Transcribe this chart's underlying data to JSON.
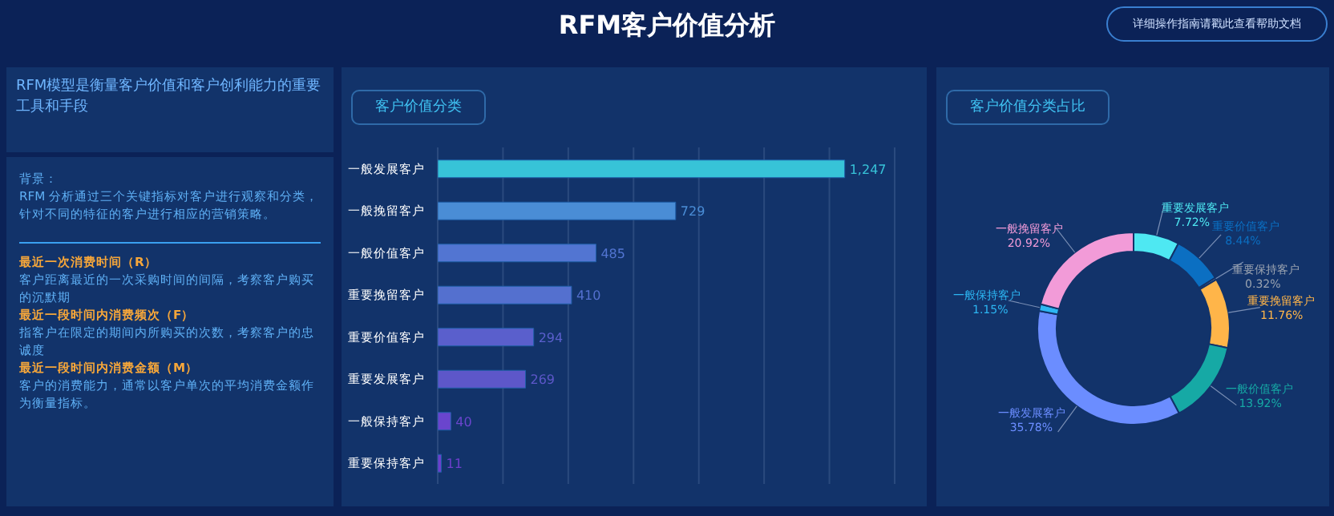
{
  "chart_data": [
    {
      "type": "other",
      "title": "RFM客户价值分析",
      "annotations": [
        "RFM模型是衡量客户价值和客户创利能力的重要工具和手段",
        "背景：",
        "RFM 分析通过三个关键指标对客户进行观察和分类，针对不同的特征的客户进行相应的营销策略。",
        "最近一次消费时间（R）",
        "客户距离最近的一次采购时间的间隔，考察客户购买的沉默期",
        "最近一段时间内消费频次（F）",
        "指客户在限定的期间内所购买的次数，考察客户的忠诚度",
        "最近一段时间内消费金额（M）",
        "客户的消费能力，通常以客户单次的平均消费金额作为衡量指标。",
        "详细操作指南请戳此查看帮助文档"
      ]
    },
    {
      "type": "bar",
      "title": "客户价值分类",
      "orientation": "horizontal",
      "categories": [
        "一般发展客户",
        "一般挽留客户",
        "一般价值客户",
        "重要挽留客户",
        "重要价值客户",
        "重要发展客户",
        "一般保持客户",
        "重要保持客户"
      ],
      "values": [
        1247,
        729,
        485,
        410,
        294,
        269,
        40,
        11
      ],
      "value_labels": [
        "1,247",
        "729",
        "485",
        "410",
        "294",
        "269",
        "40",
        "11"
      ],
      "colors": [
        "#37c3d8",
        "#4a8dd6",
        "#5275d2",
        "#5470cf",
        "#5a5fcc",
        "#5d57c9",
        "#6a45cd",
        "#6e3fcc"
      ],
      "xlim": [
        0,
        1400
      ],
      "xticks": [
        {
          "value": 0,
          "label": null
        },
        {
          "value": 200,
          "label": null
        },
        {
          "value": 400,
          "label": null
        },
        {
          "value": 600,
          "label": null
        },
        {
          "value": 800,
          "label": null
        },
        {
          "value": 1000,
          "label": null
        },
        {
          "value": 1200,
          "label": null
        },
        {
          "value": 1400,
          "label": null
        }
      ],
      "grid": "x",
      "tick_labels": "y"
    },
    {
      "type": "donut",
      "title": "客户价值分类占比",
      "categories": [
        "重要发展客户",
        "重要价值客户",
        "重要保持客户",
        "重要挽留客户",
        "一般价值客户",
        "一般发展客户",
        "一般保持客户",
        "一般挽留客户"
      ],
      "values": [
        7.72,
        8.44,
        0.32,
        11.76,
        13.92,
        35.78,
        1.15,
        20.92
      ],
      "value_labels": [
        "7.72%",
        "8.44%",
        "0.32%",
        "11.76%",
        "13.92%",
        "35.78%",
        "1.15%",
        "20.92%"
      ],
      "colors": [
        "#4ee8f2",
        "#0b6fc2",
        "#9aa3b0",
        "#ffb549",
        "#16a9a5",
        "#6b8dff",
        "#2cb6f2",
        "#f29bd8"
      ]
    }
  ]
}
